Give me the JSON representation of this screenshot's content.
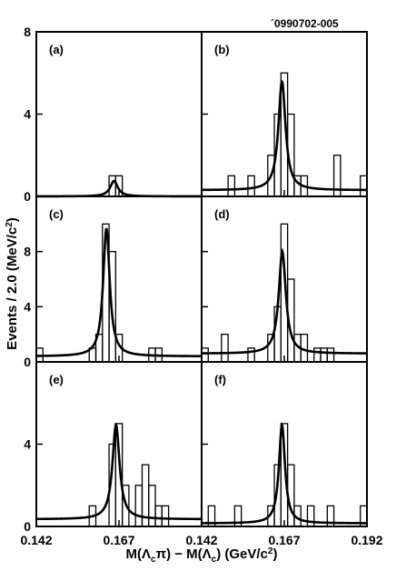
{
  "figure_id": "´0990702-005",
  "chart_data": [
    {
      "panel": "(a)",
      "type": "line",
      "xlim": [
        0.142,
        0.192
      ],
      "ylim": [
        0,
        8
      ],
      "yticks": [
        0,
        4,
        8
      ],
      "histogram": [
        {
          "x": 0.164,
          "y": 1
        },
        {
          "x": 0.166,
          "y": 1
        }
      ],
      "fit": {
        "peak_x": 0.1655,
        "height": 0.75,
        "width": 0.0014,
        "background": 0.0
      }
    },
    {
      "panel": "(b)",
      "type": "line",
      "xlim": [
        0.142,
        0.192
      ],
      "ylim": [
        0,
        8
      ],
      "yticks": [
        0,
        4,
        8
      ],
      "histogram": [
        {
          "x": 0.15,
          "y": 1
        },
        {
          "x": 0.156,
          "y": 1
        },
        {
          "x": 0.162,
          "y": 2
        },
        {
          "x": 0.164,
          "y": 4
        },
        {
          "x": 0.166,
          "y": 6
        },
        {
          "x": 0.168,
          "y": 4
        },
        {
          "x": 0.17,
          "y": 1
        },
        {
          "x": 0.172,
          "y": 1
        },
        {
          "x": 0.182,
          "y": 2
        },
        {
          "x": 0.19,
          "y": 1
        }
      ],
      "fit": {
        "peak_x": 0.1663,
        "height": 5.3,
        "width": 0.0013,
        "background": 0.3
      }
    },
    {
      "panel": "(c)",
      "type": "line",
      "xlim": [
        0.142,
        0.192
      ],
      "ylim": [
        0,
        12
      ],
      "yticks": [
        0,
        4,
        8
      ],
      "histogram": [
        {
          "x": 0.142,
          "y": 1
        },
        {
          "x": 0.158,
          "y": 1
        },
        {
          "x": 0.16,
          "y": 2
        },
        {
          "x": 0.162,
          "y": 10
        },
        {
          "x": 0.164,
          "y": 8
        },
        {
          "x": 0.166,
          "y": 2
        },
        {
          "x": 0.176,
          "y": 1
        },
        {
          "x": 0.178,
          "y": 1
        }
      ],
      "fit": {
        "peak_x": 0.1632,
        "height": 9.3,
        "width": 0.0012,
        "background": 0.4
      }
    },
    {
      "panel": "(d)",
      "type": "line",
      "xlim": [
        0.142,
        0.192
      ],
      "ylim": [
        0,
        12
      ],
      "yticks": [
        0,
        4,
        8
      ],
      "histogram": [
        {
          "x": 0.142,
          "y": 1
        },
        {
          "x": 0.148,
          "y": 2
        },
        {
          "x": 0.156,
          "y": 1
        },
        {
          "x": 0.162,
          "y": 2
        },
        {
          "x": 0.164,
          "y": 4
        },
        {
          "x": 0.166,
          "y": 10
        },
        {
          "x": 0.168,
          "y": 6
        },
        {
          "x": 0.17,
          "y": 2
        },
        {
          "x": 0.172,
          "y": 2
        },
        {
          "x": 0.176,
          "y": 1
        },
        {
          "x": 0.178,
          "y": 1
        },
        {
          "x": 0.18,
          "y": 1
        }
      ],
      "fit": {
        "peak_x": 0.1664,
        "height": 7.4,
        "width": 0.0013,
        "background": 0.6
      }
    },
    {
      "panel": "(e)",
      "type": "line",
      "xlim": [
        0.142,
        0.192
      ],
      "ylim": [
        0,
        8
      ],
      "yticks": [
        0,
        4
      ],
      "histogram": [
        {
          "x": 0.158,
          "y": 1
        },
        {
          "x": 0.164,
          "y": 4
        },
        {
          "x": 0.166,
          "y": 5
        },
        {
          "x": 0.168,
          "y": 2
        },
        {
          "x": 0.172,
          "y": 2
        },
        {
          "x": 0.174,
          "y": 3
        },
        {
          "x": 0.176,
          "y": 2
        },
        {
          "x": 0.178,
          "y": 1
        },
        {
          "x": 0.18,
          "y": 1
        }
      ],
      "fit": {
        "peak_x": 0.1661,
        "height": 4.6,
        "width": 0.0013,
        "background": 0.35
      }
    },
    {
      "panel": "(f)",
      "type": "line",
      "xlim": [
        0.142,
        0.192
      ],
      "ylim": [
        0,
        8
      ],
      "yticks": [
        0,
        4
      ],
      "histogram": [
        {
          "x": 0.144,
          "y": 1
        },
        {
          "x": 0.152,
          "y": 1
        },
        {
          "x": 0.162,
          "y": 1
        },
        {
          "x": 0.164,
          "y": 3
        },
        {
          "x": 0.166,
          "y": 5
        },
        {
          "x": 0.168,
          "y": 3
        },
        {
          "x": 0.17,
          "y": 1
        },
        {
          "x": 0.174,
          "y": 1
        },
        {
          "x": 0.18,
          "y": 1
        },
        {
          "x": 0.19,
          "y": 1
        }
      ],
      "fit": {
        "peak_x": 0.1663,
        "height": 4.8,
        "width": 0.0011,
        "background": 0.15
      }
    }
  ],
  "axes": {
    "xlabel": {
      "main1": "M(Λ",
      "sub1": "c",
      "main2": "π) − M(Λ",
      "sub2": "c",
      "main3": ") (GeV/c",
      "sup": "2",
      "main4": ")"
    },
    "ylabel": {
      "main": "Events / 2.0 (MeV/c",
      "sup": "2",
      "close": ")"
    },
    "xticks_left": [
      "0.142",
      "0.167"
    ],
    "xticks_right": [
      "0.142",
      "0.167",
      "0.192"
    ],
    "bin_width": 0.002
  }
}
